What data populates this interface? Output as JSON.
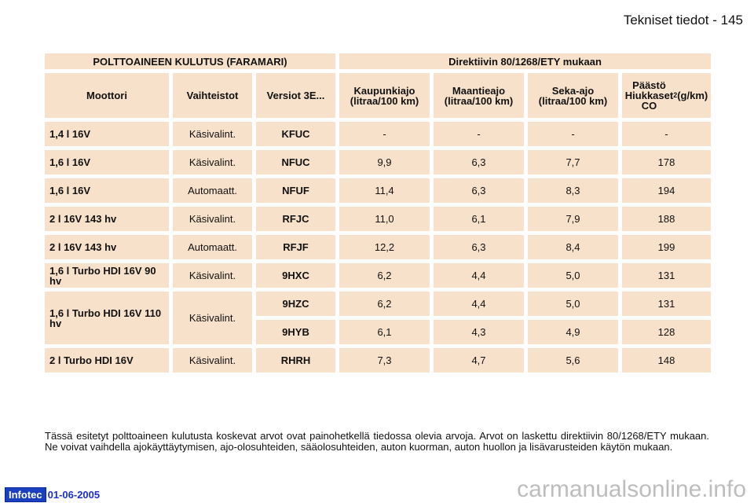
{
  "header": {
    "title": "Tekniset tiedot - 145"
  },
  "table": {
    "group1": "POLTTOAINEEN KULUTUS (FARAMARI)",
    "group2": "Direktiivin 80/1268/ETY mukaan",
    "columns": [
      "Moottori",
      "Vaihteistot",
      "Versiot 3E...",
      "Kaupunkiajo (litraa/100 km)",
      "Maantieajo (litraa/100 km)",
      "Seka-ajo (litraa/100 km)",
      "Päästö Hiukkaset CO2 (g/km)"
    ],
    "rows": [
      [
        "1,4 l 16V",
        "Käsivalint.",
        "KFUC",
        "-",
        "-",
        "-",
        "-"
      ],
      [
        "1,6 l 16V",
        "Käsivalint.",
        "NFUC",
        "9,9",
        "6,3",
        "7,7",
        "178"
      ],
      [
        "1,6 l 16V",
        "Automaatt.",
        "NFUF",
        "11,4",
        "6,3",
        "8,3",
        "194"
      ],
      [
        "2 l 16V 143 hv",
        "Käsivalint.",
        "RFJC",
        "11,0",
        "6,1",
        "7,9",
        "188"
      ],
      [
        "2 l 16V 143 hv",
        "Automaatt.",
        "RFJF",
        "12,2",
        "6,3",
        "8,4",
        "199"
      ],
      [
        "1,6 l Turbo HDI 16V 90 hv",
        "Käsivalint.",
        "9HXC",
        "6,2",
        "4,4",
        "5,0",
        "131"
      ],
      [
        "1,6 l Turbo HDI 16V 110 hv",
        "Käsivalint.",
        "9HZC",
        "6,2",
        "4,4",
        "5,0",
        "131"
      ],
      [
        "",
        "",
        "9HYB",
        "6,1",
        "4,3",
        "4,9",
        "128"
      ],
      [
        "2 l Turbo HDI 16V",
        "Käsivalint.",
        "RHRH",
        "7,3",
        "4,7",
        "5,6",
        "148"
      ]
    ]
  },
  "note": "Tässä esitetyt polttoaineen kulutusta koskevat arvot ovat painohetkellä tiedossa olevia arvoja. Arvot on laskettu direktiivin 80/1268/ETY mukaan. Ne voivat vaihdella ajokäyttäytymisen, ajo-olosuhteiden, sääolosuhteiden, auton kuorman, auton huollon ja lisävarusteiden käytön mukaan.",
  "footer": {
    "logo": "Infotec",
    "date": "01-06-2005",
    "watermark": "carmanualsonline.info"
  }
}
